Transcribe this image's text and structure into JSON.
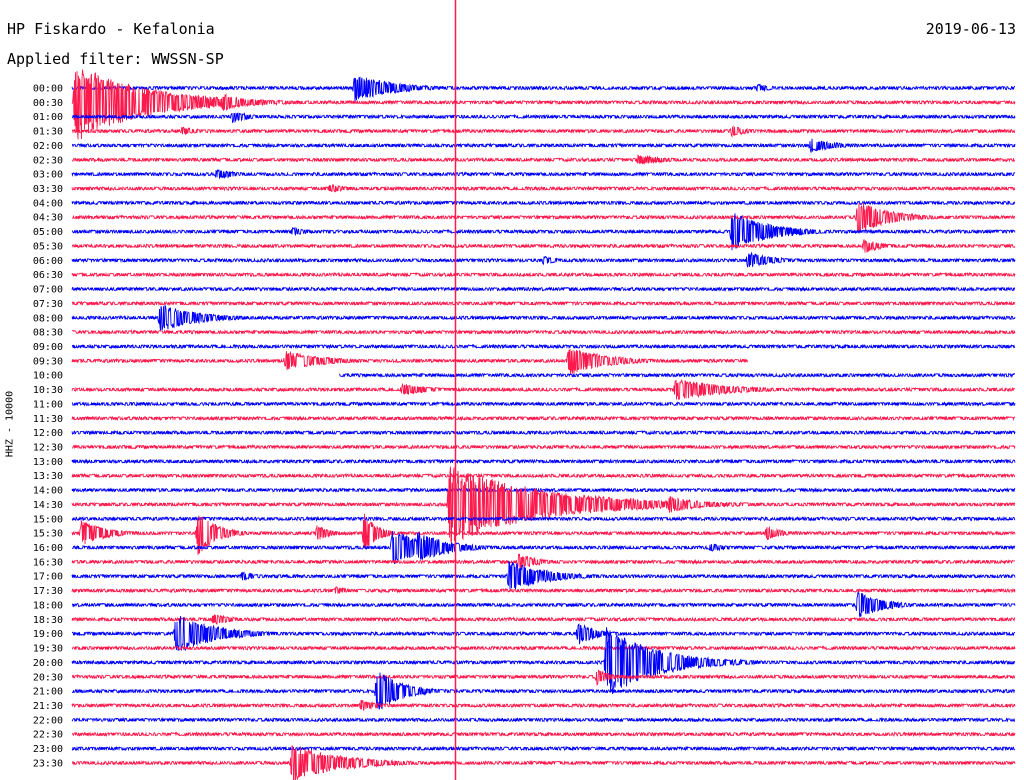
{
  "header": {
    "station": "HP Fiskardo - Kefalonia",
    "filter": "Applied filter: WWSSN-SP",
    "date": "2019-06-13"
  },
  "colors": {
    "odd_trace": "#0000ff",
    "even_trace": "#ff1a4d",
    "marker": "#ff1a4d"
  },
  "chart_data": {
    "type": "line",
    "title": "HP Fiskardo - Kefalonia",
    "subtitle": "Applied filter: WWSSN-SP",
    "ylabel": "HHZ - 10000",
    "y_tick_labels": [
      "00:00",
      "00:30",
      "01:00",
      "01:30",
      "02:00",
      "02:30",
      "03:00",
      "03:30",
      "04:00",
      "04:30",
      "05:00",
      "05:30",
      "06:00",
      "06:30",
      "07:00",
      "07:30",
      "08:00",
      "08:30",
      "09:00",
      "09:30",
      "10:00",
      "10:30",
      "11:00",
      "11:30",
      "12:00",
      "12:30",
      "13:00",
      "13:30",
      "14:00",
      "14:30",
      "15:00",
      "15:30",
      "16:00",
      "16:30",
      "17:00",
      "17:30",
      "18:00",
      "18:30",
      "19:00",
      "19:30",
      "20:00",
      "20:30",
      "21:00",
      "21:30",
      "22:00",
      "22:30",
      "23:00",
      "23:30"
    ],
    "x_range_minutes": [
      0,
      30
    ],
    "gap_row": {
      "trace_end_row": 19,
      "trace_end_minute": 21.5,
      "next_start_minute": 8.5
    },
    "marker_minute": 12.2,
    "events": [
      {
        "row": 0,
        "t": 9.0,
        "amp": 1.0,
        "dur": 1.2
      },
      {
        "row": 0,
        "t": 21.8,
        "amp": 0.3,
        "dur": 0.5
      },
      {
        "row": 1,
        "t": 0.1,
        "amp": 2.8,
        "dur": 2.2
      },
      {
        "row": 1,
        "t": 4.8,
        "amp": 0.6,
        "dur": 0.8
      },
      {
        "row": 2,
        "t": 5.1,
        "amp": 0.4,
        "dur": 0.6
      },
      {
        "row": 3,
        "t": 3.5,
        "amp": 0.3,
        "dur": 0.6
      },
      {
        "row": 3,
        "t": 21.0,
        "amp": 0.4,
        "dur": 0.5
      },
      {
        "row": 4,
        "t": 23.5,
        "amp": 0.5,
        "dur": 0.8
      },
      {
        "row": 5,
        "t": 18.0,
        "amp": 0.35,
        "dur": 1.0
      },
      {
        "row": 6,
        "t": 4.6,
        "amp": 0.4,
        "dur": 0.6
      },
      {
        "row": 7,
        "t": 8.2,
        "amp": 0.3,
        "dur": 0.6
      },
      {
        "row": 9,
        "t": 25.0,
        "amp": 1.2,
        "dur": 1.0
      },
      {
        "row": 10,
        "t": 21.0,
        "amp": 1.4,
        "dur": 1.2
      },
      {
        "row": 10,
        "t": 7.0,
        "amp": 0.3,
        "dur": 0.6
      },
      {
        "row": 11,
        "t": 25.2,
        "amp": 0.5,
        "dur": 0.6
      },
      {
        "row": 12,
        "t": 21.5,
        "amp": 0.6,
        "dur": 0.8
      },
      {
        "row": 12,
        "t": 15.0,
        "amp": 0.3,
        "dur": 0.5
      },
      {
        "row": 16,
        "t": 2.8,
        "amp": 1.0,
        "dur": 1.2
      },
      {
        "row": 19,
        "t": 6.8,
        "amp": 0.7,
        "dur": 1.2
      },
      {
        "row": 19,
        "t": 15.8,
        "amp": 1.0,
        "dur": 1.2
      },
      {
        "row": 21,
        "t": 10.5,
        "amp": 0.4,
        "dur": 1.0
      },
      {
        "row": 21,
        "t": 19.2,
        "amp": 0.8,
        "dur": 1.6
      },
      {
        "row": 29,
        "t": 12.0,
        "amp": 2.8,
        "dur": 3.0
      },
      {
        "row": 29,
        "t": 19.0,
        "amp": 0.6,
        "dur": 1.0
      },
      {
        "row": 31,
        "t": 0.3,
        "amp": 0.9,
        "dur": 0.8
      },
      {
        "row": 31,
        "t": 4.0,
        "amp": 1.6,
        "dur": 0.6
      },
      {
        "row": 31,
        "t": 7.8,
        "amp": 0.6,
        "dur": 0.4
      },
      {
        "row": 31,
        "t": 9.3,
        "amp": 1.4,
        "dur": 0.4
      },
      {
        "row": 31,
        "t": 22.1,
        "amp": 0.5,
        "dur": 0.5
      },
      {
        "row": 32,
        "t": 10.2,
        "amp": 1.3,
        "dur": 1.0
      },
      {
        "row": 32,
        "t": 11.0,
        "amp": 1.1,
        "dur": 1.0
      },
      {
        "row": 32,
        "t": 20.3,
        "amp": 0.3,
        "dur": 0.6
      },
      {
        "row": 33,
        "t": 14.2,
        "amp": 0.6,
        "dur": 0.6
      },
      {
        "row": 34,
        "t": 13.9,
        "amp": 1.1,
        "dur": 1.2
      },
      {
        "row": 34,
        "t": 5.4,
        "amp": 0.3,
        "dur": 0.6
      },
      {
        "row": 35,
        "t": 8.4,
        "amp": 0.3,
        "dur": 0.4
      },
      {
        "row": 36,
        "t": 25.0,
        "amp": 1.0,
        "dur": 0.8
      },
      {
        "row": 37,
        "t": 4.5,
        "amp": 0.4,
        "dur": 0.6
      },
      {
        "row": 38,
        "t": 3.3,
        "amp": 1.5,
        "dur": 1.2
      },
      {
        "row": 38,
        "t": 16.1,
        "amp": 0.8,
        "dur": 0.6
      },
      {
        "row": 40,
        "t": 17.0,
        "amp": 2.5,
        "dur": 1.6
      },
      {
        "row": 41,
        "t": 16.7,
        "amp": 0.6,
        "dur": 0.4
      },
      {
        "row": 42,
        "t": 9.7,
        "amp": 1.5,
        "dur": 0.8
      },
      {
        "row": 43,
        "t": 9.2,
        "amp": 0.4,
        "dur": 0.6
      },
      {
        "row": 47,
        "t": 7.0,
        "amp": 1.3,
        "dur": 1.6
      }
    ]
  }
}
